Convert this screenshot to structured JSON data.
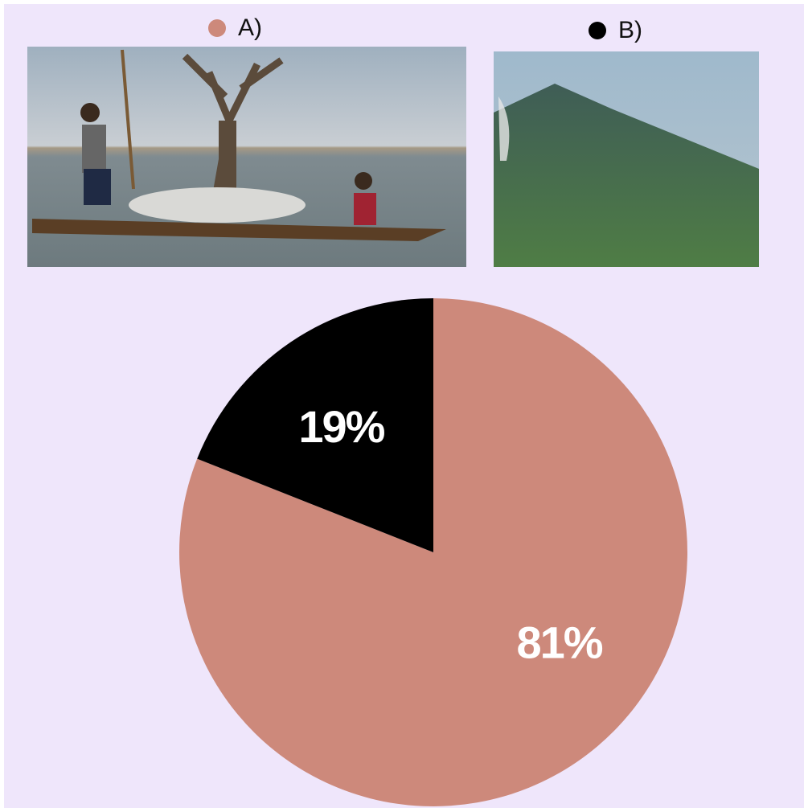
{
  "chart_data": {
    "type": "pie",
    "categories": [
      "A)",
      "B)"
    ],
    "values": [
      81,
      19
    ],
    "value_labels": [
      "81%",
      "19%"
    ],
    "colors": [
      "#cd897b",
      "#000000"
    ]
  }
}
